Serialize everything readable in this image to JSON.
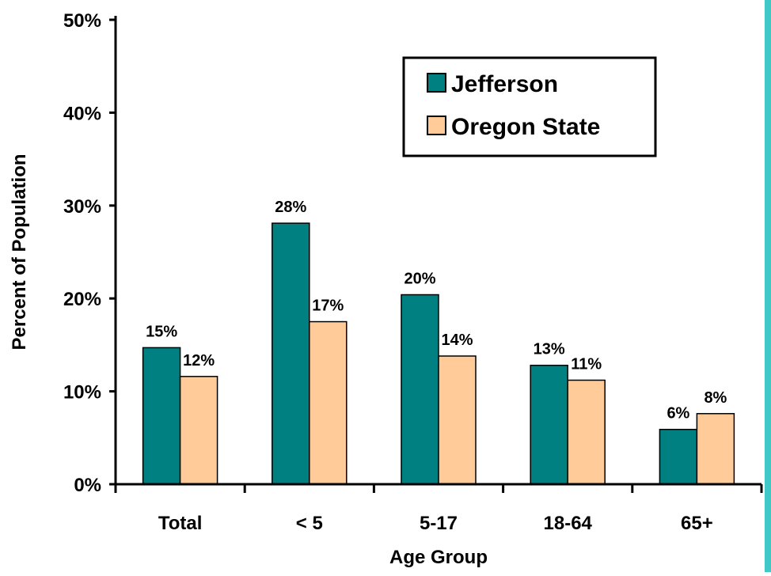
{
  "chart_data": {
    "type": "bar",
    "title": "",
    "xlabel": "Age Group",
    "ylabel": "Percent of Population",
    "categories": [
      "Total",
      "< 5",
      "5-17",
      "18-64",
      "65+"
    ],
    "series": [
      {
        "name": "Jefferson",
        "values": [
          14.7,
          28.1,
          20.4,
          12.8,
          5.9
        ],
        "labels": [
          "15%",
          "28%",
          "20%",
          "13%",
          "6%"
        ],
        "color": "#008080"
      },
      {
        "name": "Oregon State",
        "values": [
          11.6,
          17.5,
          13.8,
          11.2,
          7.6
        ],
        "labels": [
          "12%",
          "17%",
          "14%",
          "11%",
          "8%"
        ],
        "color": "#FFCC99"
      }
    ],
    "ylim": [
      0,
      50
    ],
    "yticks": [
      0,
      10,
      20,
      30,
      40,
      50
    ],
    "ytick_labels": [
      "0%",
      "10%",
      "20%",
      "30%",
      "40%",
      "50%"
    ],
    "grid": false,
    "legend_position": "top-right",
    "edge_color": "#40C8C8"
  }
}
